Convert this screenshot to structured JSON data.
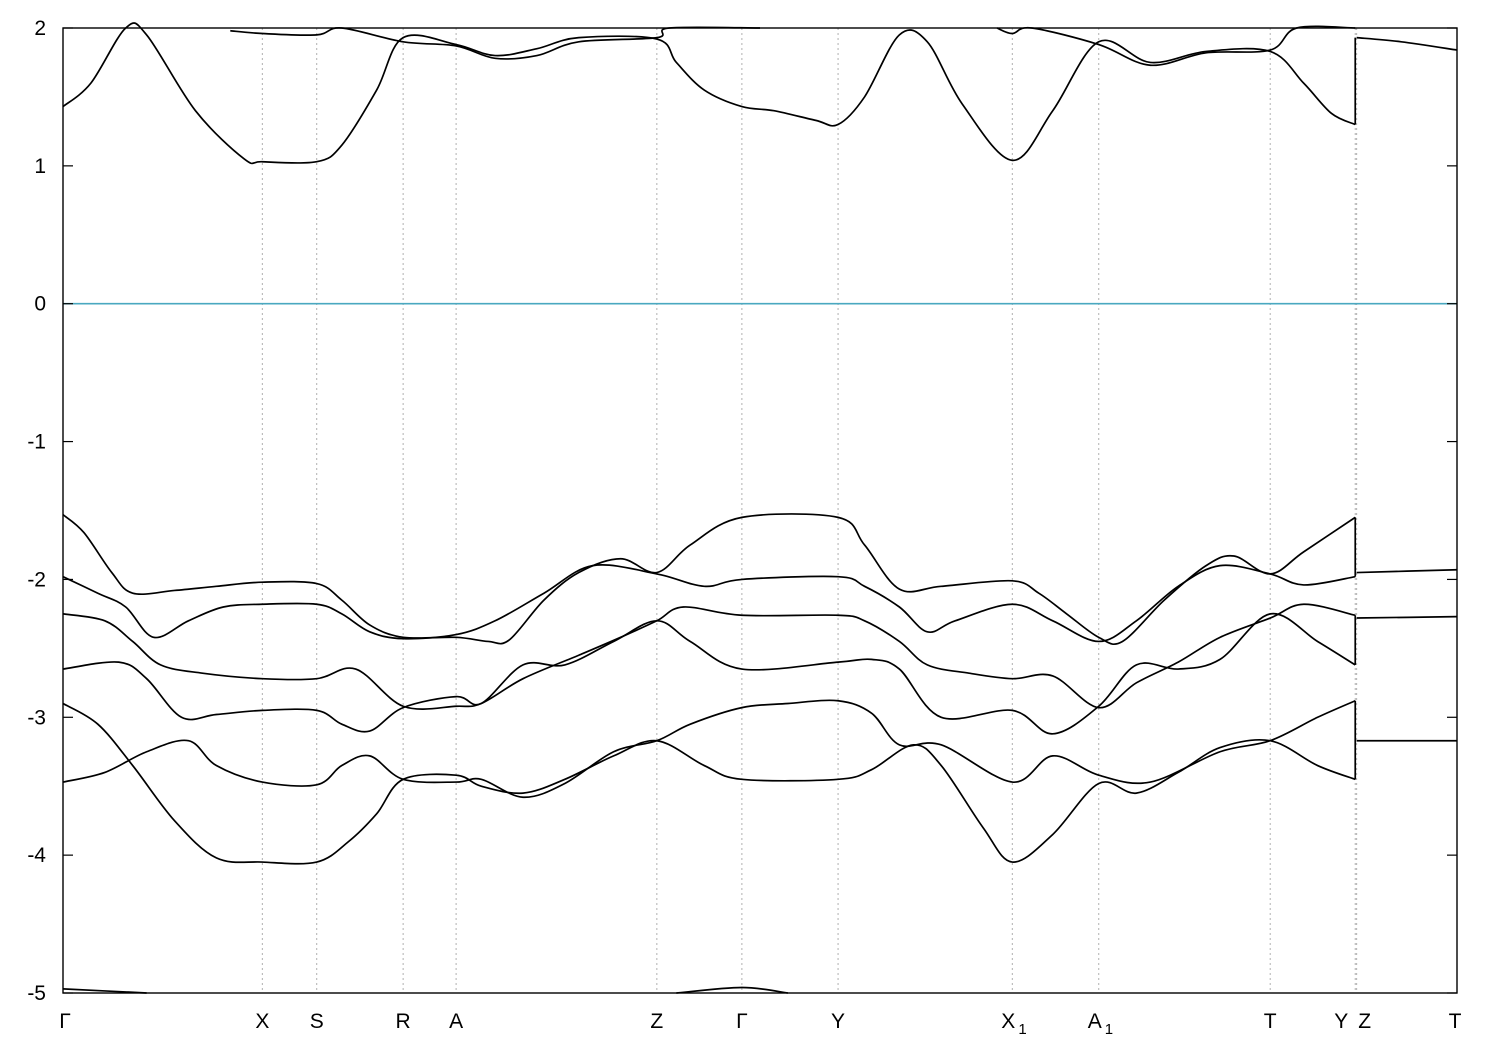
{
  "chart_data": {
    "type": "line",
    "title": "",
    "xlabel": "",
    "ylabel": "",
    "ylim": [
      -5,
      2
    ],
    "yticks": [
      -5,
      -4,
      -3,
      -2,
      -1,
      0,
      1,
      2
    ],
    "ytick_labels": [
      "-5",
      "-4",
      "-3",
      "-2",
      "-1",
      "0",
      "1",
      "2"
    ],
    "xlim": [
      0,
      10.0
    ],
    "grid": "vertical dotted lines at high-symmetry points",
    "legend": "none",
    "colors": {
      "bands": "#000000",
      "fermi_level": "#4aa8c0",
      "grid": "#b0b0b0"
    },
    "high_symmetry_points": [
      {
        "label": "Γ",
        "sub": "",
        "x": 0.0
      },
      {
        "label": "X",
        "sub": "",
        "x": 1.43
      },
      {
        "label": "S",
        "sub": "",
        "x": 1.82
      },
      {
        "label": "R",
        "sub": "",
        "x": 2.44
      },
      {
        "label": "A",
        "sub": "",
        "x": 2.82
      },
      {
        "label": "Z",
        "sub": "",
        "x": 4.26
      },
      {
        "label": "Γ",
        "sub": "",
        "x": 4.87
      },
      {
        "label": "Y",
        "sub": "",
        "x": 5.56
      },
      {
        "label": "X",
        "sub": "1",
        "x": 6.81
      },
      {
        "label": "A",
        "sub": "1",
        "x": 7.43
      },
      {
        "label": "T",
        "sub": "",
        "x": 8.66
      },
      {
        "label": "Y",
        "sub": "",
        "x": 9.27
      },
      {
        "label": "Z",
        "sub": "",
        "x": 9.28
      },
      {
        "label": "T",
        "sub": "",
        "x": 10.0
      }
    ],
    "fermi_level": 0,
    "series": [
      {
        "values": [
          [
            0,
            1.43
          ],
          [
            0.2,
            1.6
          ],
          [
            0.45,
            2.0
          ],
          [
            0.6,
            1.95
          ],
          [
            0.95,
            1.4
          ],
          [
            1.3,
            1.05
          ],
          [
            1.43,
            1.03
          ],
          [
            1.82,
            1.03
          ],
          [
            2.0,
            1.15
          ],
          [
            2.25,
            1.55
          ],
          [
            2.44,
            1.93
          ],
          [
            2.82,
            1.88
          ],
          [
            3.1,
            1.8
          ],
          [
            3.4,
            1.85
          ],
          [
            3.7,
            1.93
          ],
          [
            4.26,
            1.92
          ],
          [
            4.4,
            1.75
          ],
          [
            4.6,
            1.55
          ],
          [
            4.87,
            1.43
          ],
          [
            5.1,
            1.4
          ],
          [
            5.4,
            1.33
          ],
          [
            5.56,
            1.3
          ],
          [
            5.75,
            1.5
          ],
          [
            6.0,
            1.95
          ],
          [
            6.2,
            1.9
          ],
          [
            6.45,
            1.45
          ],
          [
            6.81,
            1.04
          ],
          [
            7.1,
            1.4
          ],
          [
            7.43,
            1.9
          ],
          [
            7.8,
            1.75
          ],
          [
            8.2,
            1.83
          ],
          [
            8.66,
            1.83
          ],
          [
            8.9,
            1.6
          ],
          [
            9.1,
            1.38
          ],
          [
            9.27,
            1.3
          ]
        ]
      },
      {
        "values": [
          [
            1.2,
            1.98
          ],
          [
            1.43,
            1.96
          ],
          [
            1.82,
            1.95
          ],
          [
            2.0,
            2.0
          ],
          [
            2.44,
            1.9
          ],
          [
            2.82,
            1.87
          ],
          [
            3.1,
            1.78
          ],
          [
            3.4,
            1.8
          ],
          [
            3.7,
            1.9
          ],
          [
            4.26,
            1.93
          ],
          [
            4.35,
            2.0
          ],
          [
            5.0,
            2.0
          ]
        ]
      },
      {
        "values": [
          [
            6.7,
            2.0
          ],
          [
            6.81,
            1.96
          ],
          [
            6.95,
            2.0
          ],
          [
            7.43,
            1.88
          ],
          [
            7.8,
            1.73
          ],
          [
            8.2,
            1.82
          ],
          [
            8.66,
            1.84
          ],
          [
            8.85,
            2.0
          ],
          [
            9.27,
            2.0
          ]
        ]
      },
      {
        "values": [
          [
            9.28,
            1.93
          ],
          [
            9.6,
            1.9
          ],
          [
            10.0,
            1.84
          ]
        ]
      },
      {
        "values": [
          [
            0,
            -1.53
          ],
          [
            0.15,
            -1.66
          ],
          [
            0.35,
            -1.95
          ],
          [
            0.5,
            -2.1
          ],
          [
            0.8,
            -2.08
          ],
          [
            1.1,
            -2.05
          ],
          [
            1.43,
            -2.02
          ],
          [
            1.82,
            -2.03
          ],
          [
            2.0,
            -2.15
          ],
          [
            2.2,
            -2.33
          ],
          [
            2.44,
            -2.42
          ],
          [
            2.82,
            -2.42
          ],
          [
            3.05,
            -2.45
          ],
          [
            3.2,
            -2.44
          ],
          [
            3.45,
            -2.15
          ],
          [
            3.7,
            -1.95
          ],
          [
            4.0,
            -1.85
          ],
          [
            4.26,
            -1.95
          ],
          [
            4.5,
            -1.75
          ],
          [
            4.87,
            -1.55
          ],
          [
            5.56,
            -1.55
          ],
          [
            5.75,
            -1.75
          ],
          [
            6.0,
            -2.07
          ],
          [
            6.3,
            -2.05
          ],
          [
            6.81,
            -2.01
          ],
          [
            7.0,
            -2.1
          ],
          [
            7.2,
            -2.25
          ],
          [
            7.43,
            -2.42
          ],
          [
            7.6,
            -2.45
          ],
          [
            7.9,
            -2.15
          ],
          [
            8.2,
            -1.9
          ],
          [
            8.4,
            -1.83
          ],
          [
            8.66,
            -1.96
          ],
          [
            8.9,
            -1.8
          ],
          [
            9.27,
            -1.55
          ]
        ]
      },
      {
        "values": [
          [
            0,
            -1.98
          ],
          [
            0.25,
            -2.1
          ],
          [
            0.45,
            -2.2
          ],
          [
            0.65,
            -2.42
          ],
          [
            0.9,
            -2.3
          ],
          [
            1.15,
            -2.2
          ],
          [
            1.43,
            -2.18
          ],
          [
            1.82,
            -2.18
          ],
          [
            2.0,
            -2.25
          ],
          [
            2.2,
            -2.38
          ],
          [
            2.44,
            -2.43
          ],
          [
            2.82,
            -2.4
          ],
          [
            3.1,
            -2.3
          ],
          [
            3.45,
            -2.1
          ],
          [
            3.8,
            -1.9
          ],
          [
            4.26,
            -1.96
          ],
          [
            4.6,
            -2.05
          ],
          [
            4.87,
            -2.0
          ],
          [
            5.56,
            -1.98
          ],
          [
            5.75,
            -2.05
          ],
          [
            6.0,
            -2.2
          ],
          [
            6.2,
            -2.38
          ],
          [
            6.4,
            -2.3
          ],
          [
            6.81,
            -2.18
          ],
          [
            7.1,
            -2.3
          ],
          [
            7.43,
            -2.45
          ],
          [
            7.7,
            -2.3
          ],
          [
            8.0,
            -2.05
          ],
          [
            8.3,
            -1.9
          ],
          [
            8.66,
            -1.96
          ],
          [
            8.9,
            -2.04
          ],
          [
            9.27,
            -1.98
          ]
        ]
      },
      {
        "values": [
          [
            0,
            -2.25
          ],
          [
            0.3,
            -2.3
          ],
          [
            0.5,
            -2.45
          ],
          [
            0.7,
            -2.62
          ],
          [
            1.0,
            -2.68
          ],
          [
            1.43,
            -2.72
          ],
          [
            1.82,
            -2.72
          ],
          [
            2.1,
            -2.65
          ],
          [
            2.44,
            -2.92
          ],
          [
            2.82,
            -2.92
          ],
          [
            3.0,
            -2.9
          ],
          [
            3.3,
            -2.72
          ],
          [
            3.7,
            -2.55
          ],
          [
            4.0,
            -2.42
          ],
          [
            4.26,
            -2.3
          ],
          [
            4.45,
            -2.2
          ],
          [
            4.87,
            -2.26
          ],
          [
            5.56,
            -2.26
          ],
          [
            5.75,
            -2.3
          ],
          [
            6.0,
            -2.45
          ],
          [
            6.2,
            -2.62
          ],
          [
            6.5,
            -2.68
          ],
          [
            6.81,
            -2.72
          ],
          [
            7.1,
            -2.7
          ],
          [
            7.43,
            -2.93
          ],
          [
            7.7,
            -2.75
          ],
          [
            8.0,
            -2.6
          ],
          [
            8.3,
            -2.42
          ],
          [
            8.66,
            -2.28
          ],
          [
            8.9,
            -2.18
          ],
          [
            9.27,
            -2.26
          ]
        ]
      },
      {
        "values": [
          [
            0,
            -2.65
          ],
          [
            0.4,
            -2.6
          ],
          [
            0.6,
            -2.72
          ],
          [
            0.85,
            -3.0
          ],
          [
            1.1,
            -2.98
          ],
          [
            1.43,
            -2.95
          ],
          [
            1.82,
            -2.95
          ],
          [
            2.0,
            -3.05
          ],
          [
            2.2,
            -3.1
          ],
          [
            2.44,
            -2.93
          ],
          [
            2.82,
            -2.85
          ],
          [
            3.0,
            -2.9
          ],
          [
            3.3,
            -2.62
          ],
          [
            3.6,
            -2.62
          ],
          [
            3.95,
            -2.45
          ],
          [
            4.26,
            -2.3
          ],
          [
            4.5,
            -2.45
          ],
          [
            4.87,
            -2.65
          ],
          [
            5.56,
            -2.6
          ],
          [
            5.8,
            -2.58
          ],
          [
            6.0,
            -2.65
          ],
          [
            6.3,
            -3.0
          ],
          [
            6.81,
            -2.95
          ],
          [
            7.1,
            -3.12
          ],
          [
            7.43,
            -2.92
          ],
          [
            7.7,
            -2.62
          ],
          [
            8.0,
            -2.65
          ],
          [
            8.3,
            -2.58
          ],
          [
            8.66,
            -2.25
          ],
          [
            9.0,
            -2.45
          ],
          [
            9.27,
            -2.62
          ]
        ]
      },
      {
        "values": [
          [
            0,
            -2.9
          ],
          [
            0.25,
            -3.05
          ],
          [
            0.5,
            -3.35
          ],
          [
            0.8,
            -3.75
          ],
          [
            1.1,
            -4.02
          ],
          [
            1.43,
            -4.05
          ],
          [
            1.82,
            -4.05
          ],
          [
            2.05,
            -3.9
          ],
          [
            2.25,
            -3.7
          ],
          [
            2.44,
            -3.45
          ],
          [
            2.82,
            -3.42
          ],
          [
            3.0,
            -3.5
          ],
          [
            3.3,
            -3.55
          ],
          [
            3.6,
            -3.45
          ],
          [
            3.95,
            -3.28
          ],
          [
            4.26,
            -3.17
          ],
          [
            4.6,
            -3.35
          ],
          [
            4.87,
            -3.45
          ],
          [
            5.56,
            -3.45
          ],
          [
            5.8,
            -3.38
          ],
          [
            6.1,
            -3.2
          ],
          [
            6.3,
            -3.35
          ],
          [
            6.6,
            -3.8
          ],
          [
            6.81,
            -4.05
          ],
          [
            7.1,
            -3.85
          ],
          [
            7.43,
            -3.48
          ],
          [
            7.7,
            -3.55
          ],
          [
            8.0,
            -3.4
          ],
          [
            8.3,
            -3.22
          ],
          [
            8.66,
            -3.17
          ],
          [
            9.0,
            -3.35
          ],
          [
            9.27,
            -3.45
          ]
        ]
      },
      {
        "values": [
          [
            0,
            -3.47
          ],
          [
            0.3,
            -3.4
          ],
          [
            0.6,
            -3.25
          ],
          [
            0.9,
            -3.17
          ],
          [
            1.1,
            -3.35
          ],
          [
            1.43,
            -3.47
          ],
          [
            1.82,
            -3.49
          ],
          [
            2.0,
            -3.35
          ],
          [
            2.2,
            -3.28
          ],
          [
            2.44,
            -3.45
          ],
          [
            2.82,
            -3.47
          ],
          [
            3.0,
            -3.45
          ],
          [
            3.3,
            -3.58
          ],
          [
            3.6,
            -3.48
          ],
          [
            3.95,
            -3.25
          ],
          [
            4.26,
            -3.17
          ],
          [
            4.5,
            -3.05
          ],
          [
            4.87,
            -2.93
          ],
          [
            5.2,
            -2.9
          ],
          [
            5.56,
            -2.88
          ],
          [
            5.8,
            -2.97
          ],
          [
            6.0,
            -3.2
          ],
          [
            6.3,
            -3.2
          ],
          [
            6.81,
            -3.47
          ],
          [
            7.1,
            -3.28
          ],
          [
            7.43,
            -3.42
          ],
          [
            7.8,
            -3.47
          ],
          [
            8.3,
            -3.25
          ],
          [
            8.66,
            -3.17
          ],
          [
            9.0,
            -3.0
          ],
          [
            9.27,
            -2.88
          ]
        ]
      },
      {
        "values": [
          [
            9.28,
            -1.95
          ],
          [
            10.0,
            -1.93
          ]
        ]
      },
      {
        "values": [
          [
            9.28,
            -2.28
          ],
          [
            10.0,
            -2.27
          ]
        ]
      },
      {
        "values": [
          [
            9.28,
            -3.17
          ],
          [
            10.0,
            -3.17
          ]
        ]
      },
      {
        "values": [
          [
            0,
            -4.97
          ],
          [
            0.6,
            -5.0
          ]
        ]
      },
      {
        "values": [
          [
            4.4,
            -5.0
          ],
          [
            4.87,
            -4.96
          ],
          [
            5.2,
            -5.0
          ]
        ]
      }
    ],
    "vertical_segments": [
      {
        "x": 9.27,
        "from": 1.3,
        "to": 1.93
      },
      {
        "x": 9.27,
        "from": -1.55,
        "to": -1.98
      },
      {
        "x": 9.27,
        "from": -2.26,
        "to": -2.62
      },
      {
        "x": 9.27,
        "from": -2.88,
        "to": -3.45
      }
    ]
  }
}
